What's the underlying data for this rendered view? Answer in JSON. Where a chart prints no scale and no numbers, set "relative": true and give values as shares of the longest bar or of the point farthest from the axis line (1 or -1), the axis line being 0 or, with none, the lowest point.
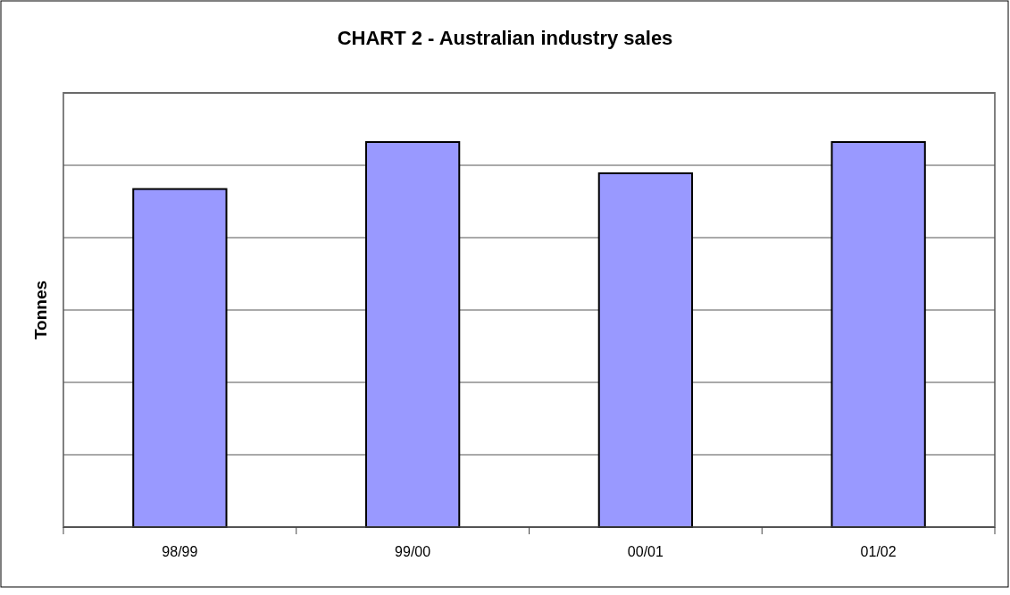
{
  "chart_data": {
    "type": "bar",
    "title": "CHART 2 - Australian industry sales",
    "ylabel": "Tonnes",
    "categories": [
      "98/99",
      "99/00",
      "00/01",
      "01/02"
    ],
    "values": [
      0.878,
      1,
      0.919,
      1
    ],
    "color": "#9999ff",
    "relative": true,
    "grid": "y"
  }
}
